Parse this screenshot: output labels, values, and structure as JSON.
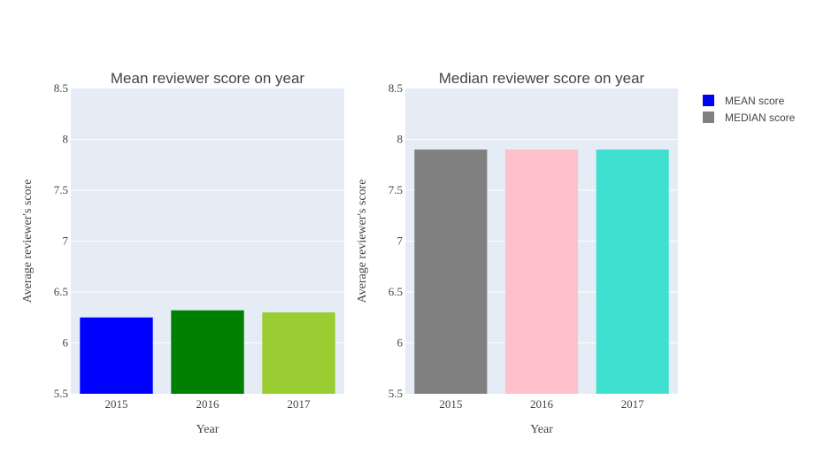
{
  "chart_data": [
    {
      "type": "bar",
      "title": "Mean reviewer score on year",
      "xlabel": "Year",
      "ylabel": "Average reviewer's score",
      "categories": [
        "2015",
        "2016",
        "2017"
      ],
      "values": [
        6.25,
        6.32,
        6.3
      ],
      "colors": [
        "#0000ff",
        "#008000",
        "#9acd32"
      ],
      "ylim": [
        5.5,
        8.5
      ],
      "yticks": [
        5.5,
        6,
        6.5,
        7,
        7.5,
        8,
        8.5
      ],
      "ytick_labels": [
        "5.5",
        "6",
        "6.5",
        "7",
        "7.5",
        "8",
        "8.5"
      ],
      "grid": true
    },
    {
      "type": "bar",
      "title": "Median reviewer score on year",
      "xlabel": "Year",
      "ylabel": "Average reviewer's score",
      "categories": [
        "2015",
        "2016",
        "2017"
      ],
      "values": [
        7.9,
        7.9,
        7.9
      ],
      "colors": [
        "#808080",
        "#ffc0cb",
        "#40e0d0"
      ],
      "ylim": [
        5.5,
        8.5
      ],
      "yticks": [
        5.5,
        6,
        6.5,
        7,
        7.5,
        8,
        8.5
      ],
      "ytick_labels": [
        "5.5",
        "6",
        "6.5",
        "7",
        "7.5",
        "8",
        "8.5"
      ],
      "grid": true
    }
  ],
  "legend": {
    "placement": "top-right",
    "items": [
      {
        "label": "MEAN score",
        "color": "#0000ff"
      },
      {
        "label": "MEDIAN score",
        "color": "#808080"
      }
    ]
  },
  "colors": {
    "plot_background": "#e5ecf6",
    "grid": "#ffffff",
    "text": "#444444"
  }
}
